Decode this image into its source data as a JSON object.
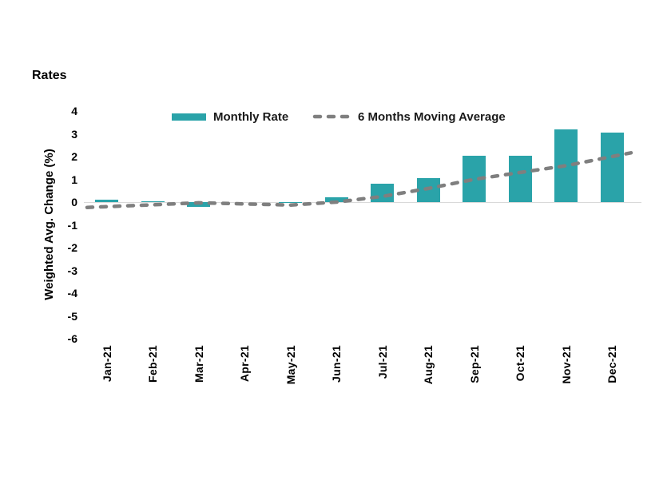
{
  "chart_data": {
    "type": "bar",
    "title": "Rates",
    "ylabel": "Weighted Avg. Change (%)",
    "xlabel": "",
    "categories": [
      "Jan-21",
      "Feb-21",
      "Mar-21",
      "Apr-21",
      "May-21",
      "Jun-21",
      "Jul-21",
      "Aug-21",
      "Sep-21",
      "Oct-21",
      "Nov-21",
      "Dec-21"
    ],
    "series": [
      {
        "name": "Monthly Rate",
        "type": "bar",
        "color": "#2AA3A9",
        "values": [
          0.1,
          0.03,
          -0.2,
          0.0,
          -0.05,
          0.2,
          0.8,
          1.05,
          2.05,
          2.05,
          3.2,
          3.05
        ]
      },
      {
        "name": "6 Months Moving Average",
        "type": "line",
        "style": "dashed",
        "color": "#7F7F7F",
        "values": [
          -0.2,
          -0.12,
          -0.03,
          -0.08,
          -0.13,
          0.0,
          0.25,
          0.6,
          1.0,
          1.3,
          1.6,
          2.0
        ]
      }
    ],
    "ylim": [
      -6,
      4
    ],
    "y_ticks": [
      4,
      3,
      2,
      1,
      0,
      -1,
      -2,
      -3,
      -4,
      -5,
      -6
    ],
    "grid": false,
    "legend_position": "top-center",
    "axis_line_color": "#D9D9D9",
    "background_color": "#FFFFFF"
  }
}
